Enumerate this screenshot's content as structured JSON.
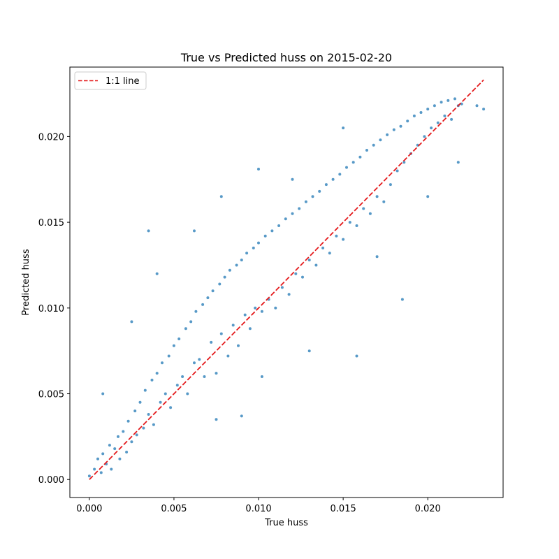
{
  "chart_data": {
    "type": "scatter",
    "title": "True vs Predicted huss on 2015-02-20",
    "xlabel": "True huss",
    "ylabel": "Predicted huss",
    "xlim": [
      -0.00115,
      0.02445
    ],
    "ylim": [
      -0.00105,
      0.02405
    ],
    "x_ticks": [
      0.0,
      0.005,
      0.01,
      0.015,
      0.02
    ],
    "x_tick_labels": [
      "0.000",
      "0.005",
      "0.010",
      "0.015",
      "0.020"
    ],
    "y_ticks": [
      0.0,
      0.005,
      0.01,
      0.015,
      0.02
    ],
    "y_tick_labels": [
      "0.000",
      "0.005",
      "0.010",
      "0.015",
      "0.020"
    ],
    "grid": false,
    "legend": {
      "placement": "top-left",
      "entries": [
        {
          "label": "1:1 line",
          "color": "#e41a1c",
          "style": "dashed"
        }
      ]
    },
    "reference_line": {
      "name": "1:1 line",
      "x": [
        0.0,
        0.0233
      ],
      "y": [
        0.0,
        0.0233
      ],
      "color": "#e41a1c"
    },
    "series": [
      {
        "name": "",
        "color": "#1f77b4",
        "marker_size": 2,
        "points": [
          [
            0.0,
            0.0002
          ],
          [
            0.0003,
            0.0006
          ],
          [
            0.0005,
            0.0012
          ],
          [
            0.0007,
            0.0004
          ],
          [
            0.0008,
            0.0015
          ],
          [
            0.001,
            0.0009
          ],
          [
            0.0012,
            0.002
          ],
          [
            0.0013,
            0.0006
          ],
          [
            0.0015,
            0.0018
          ],
          [
            0.0017,
            0.0025
          ],
          [
            0.0018,
            0.0012
          ],
          [
            0.002,
            0.0028
          ],
          [
            0.0022,
            0.0016
          ],
          [
            0.0023,
            0.0034
          ],
          [
            0.0025,
            0.0022
          ],
          [
            0.0027,
            0.004
          ],
          [
            0.0028,
            0.0026
          ],
          [
            0.003,
            0.0045
          ],
          [
            0.0032,
            0.003
          ],
          [
            0.0033,
            0.0052
          ],
          [
            0.0035,
            0.0038
          ],
          [
            0.0037,
            0.0058
          ],
          [
            0.0038,
            0.0032
          ],
          [
            0.004,
            0.0062
          ],
          [
            0.0042,
            0.0045
          ],
          [
            0.0043,
            0.0068
          ],
          [
            0.0045,
            0.005
          ],
          [
            0.0047,
            0.0072
          ],
          [
            0.0048,
            0.0042
          ],
          [
            0.005,
            0.0078
          ],
          [
            0.0052,
            0.0055
          ],
          [
            0.0053,
            0.0082
          ],
          [
            0.0055,
            0.006
          ],
          [
            0.0057,
            0.0088
          ],
          [
            0.0058,
            0.005
          ],
          [
            0.006,
            0.0092
          ],
          [
            0.0062,
            0.0068
          ],
          [
            0.0063,
            0.0098
          ],
          [
            0.0065,
            0.007
          ],
          [
            0.0067,
            0.0102
          ],
          [
            0.0068,
            0.006
          ],
          [
            0.007,
            0.0106
          ],
          [
            0.0072,
            0.008
          ],
          [
            0.0073,
            0.011
          ],
          [
            0.0075,
            0.0062
          ],
          [
            0.0077,
            0.0114
          ],
          [
            0.0078,
            0.0085
          ],
          [
            0.008,
            0.0118
          ],
          [
            0.0082,
            0.0072
          ],
          [
            0.0083,
            0.0122
          ],
          [
            0.0085,
            0.009
          ],
          [
            0.0087,
            0.0125
          ],
          [
            0.0088,
            0.0078
          ],
          [
            0.009,
            0.0128
          ],
          [
            0.0092,
            0.0096
          ],
          [
            0.0093,
            0.0132
          ],
          [
            0.0095,
            0.0088
          ],
          [
            0.0097,
            0.0135
          ],
          [
            0.0098,
            0.01
          ],
          [
            0.01,
            0.0138
          ],
          [
            0.0102,
            0.0098
          ],
          [
            0.0104,
            0.0142
          ],
          [
            0.0106,
            0.0105
          ],
          [
            0.0108,
            0.0145
          ],
          [
            0.011,
            0.01
          ],
          [
            0.0112,
            0.0148
          ],
          [
            0.0114,
            0.0112
          ],
          [
            0.0116,
            0.0152
          ],
          [
            0.0118,
            0.0108
          ],
          [
            0.012,
            0.0155
          ],
          [
            0.0122,
            0.012
          ],
          [
            0.0124,
            0.0158
          ],
          [
            0.0126,
            0.0118
          ],
          [
            0.0128,
            0.0162
          ],
          [
            0.013,
            0.0128
          ],
          [
            0.0132,
            0.0165
          ],
          [
            0.0134,
            0.0125
          ],
          [
            0.0136,
            0.0168
          ],
          [
            0.0138,
            0.0135
          ],
          [
            0.014,
            0.0172
          ],
          [
            0.0142,
            0.0132
          ],
          [
            0.0144,
            0.0175
          ],
          [
            0.0146,
            0.0142
          ],
          [
            0.0148,
            0.0178
          ],
          [
            0.015,
            0.014
          ],
          [
            0.0152,
            0.0182
          ],
          [
            0.0154,
            0.015
          ],
          [
            0.0156,
            0.0185
          ],
          [
            0.0158,
            0.0148
          ],
          [
            0.016,
            0.0188
          ],
          [
            0.0162,
            0.0158
          ],
          [
            0.0164,
            0.0192
          ],
          [
            0.0166,
            0.0155
          ],
          [
            0.0168,
            0.0195
          ],
          [
            0.017,
            0.0165
          ],
          [
            0.0172,
            0.0198
          ],
          [
            0.0174,
            0.0162
          ],
          [
            0.0176,
            0.0201
          ],
          [
            0.0178,
            0.0172
          ],
          [
            0.018,
            0.0204
          ],
          [
            0.0182,
            0.018
          ],
          [
            0.0184,
            0.0206
          ],
          [
            0.0186,
            0.0185
          ],
          [
            0.0188,
            0.0209
          ],
          [
            0.019,
            0.019
          ],
          [
            0.0192,
            0.0212
          ],
          [
            0.0194,
            0.0195
          ],
          [
            0.0196,
            0.0214
          ],
          [
            0.0198,
            0.02
          ],
          [
            0.02,
            0.0216
          ],
          [
            0.0202,
            0.0205
          ],
          [
            0.0204,
            0.0218
          ],
          [
            0.0206,
            0.0208
          ],
          [
            0.0208,
            0.022
          ],
          [
            0.021,
            0.0212
          ],
          [
            0.0212,
            0.0221
          ],
          [
            0.0214,
            0.021
          ],
          [
            0.0216,
            0.0222
          ],
          [
            0.0218,
            0.0218
          ],
          [
            0.022,
            0.0219
          ],
          [
            0.0008,
            0.005
          ],
          [
            0.0025,
            0.0092
          ],
          [
            0.0035,
            0.0145
          ],
          [
            0.004,
            0.012
          ],
          [
            0.0062,
            0.0145
          ],
          [
            0.0078,
            0.0165
          ],
          [
            0.01,
            0.0181
          ],
          [
            0.0102,
            0.006
          ],
          [
            0.012,
            0.0175
          ],
          [
            0.013,
            0.0075
          ],
          [
            0.015,
            0.0205
          ],
          [
            0.0158,
            0.0072
          ],
          [
            0.017,
            0.013
          ],
          [
            0.0185,
            0.0105
          ],
          [
            0.02,
            0.0165
          ],
          [
            0.0218,
            0.0185
          ],
          [
            0.0233,
            0.0216
          ],
          [
            0.0229,
            0.0218
          ],
          [
            0.009,
            0.0037
          ],
          [
            0.0075,
            0.0035
          ]
        ]
      }
    ]
  }
}
